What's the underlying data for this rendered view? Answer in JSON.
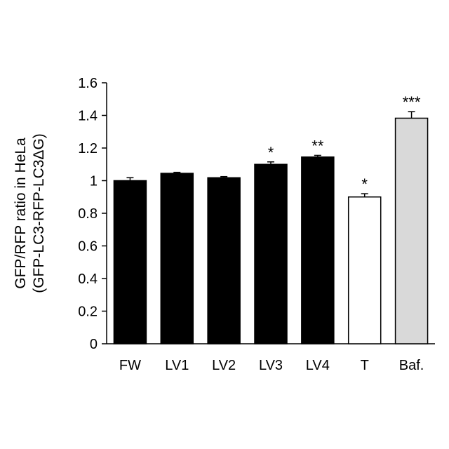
{
  "chart_data": {
    "type": "bar",
    "title": "",
    "xlabel": "",
    "ylabel": [
      "GFP/RFP ratio in HeLa",
      "(GFP-LC3-RFP-LC3ΔG)"
    ],
    "ylim": [
      0,
      1.6
    ],
    "yticks": [
      "0",
      "0.2",
      "0.4",
      "0.6",
      "0.8",
      "1",
      "1.2",
      "1.4",
      "1.6"
    ],
    "yticks_values": [
      0,
      0.2,
      0.4,
      0.6,
      0.8,
      1.0,
      1.2,
      1.4,
      1.6
    ],
    "categories": [
      "FW",
      "LV1",
      "LV2",
      "LV3",
      "LV4",
      "T",
      "Baf."
    ],
    "values": [
      1.0,
      1.045,
      1.018,
      1.1,
      1.145,
      0.9,
      1.383
    ],
    "errors": [
      0.018,
      0.006,
      0.007,
      0.015,
      0.01,
      0.02,
      0.04
    ],
    "significance": [
      "",
      "",
      "",
      "*",
      "**",
      "*",
      "***"
    ],
    "bar_colors": [
      "#000000",
      "#000000",
      "#000000",
      "#000000",
      "#000000",
      "#ffffff",
      "#d9d9d9"
    ],
    "grid": false,
    "legend": "none"
  }
}
